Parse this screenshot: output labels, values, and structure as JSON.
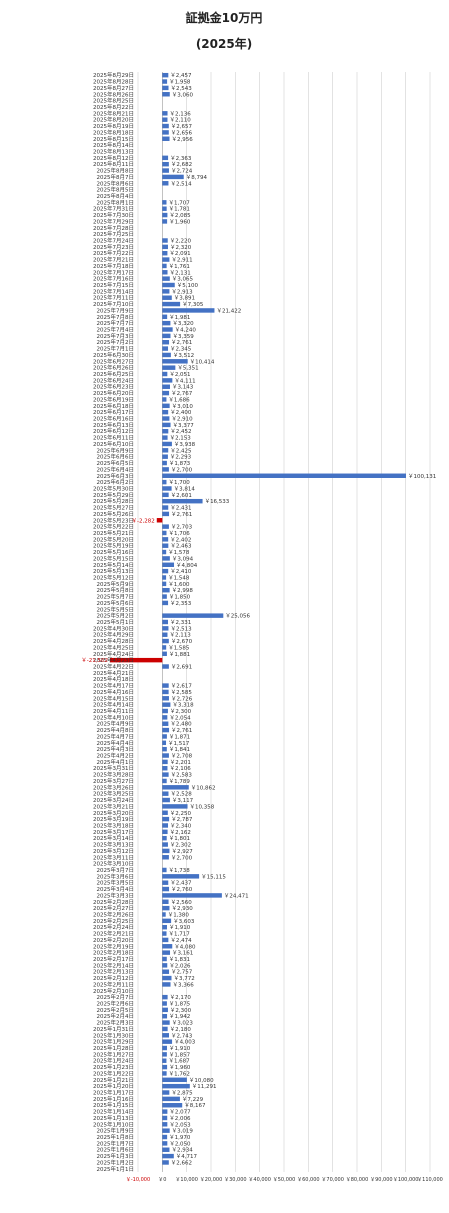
{
  "chart_data": {
    "type": "bar",
    "orientation": "horizontal",
    "title": "証拠金10万円",
    "subtitle": "(2025年)",
    "bar_color": "#4472c4",
    "negative_color": "#cc0000",
    "xlim": [
      -10000,
      110000
    ],
    "x_ticks": [
      {
        "label": "￥-10,000",
        "value": -10000
      },
      {
        "label": "￥0",
        "value": 0
      },
      {
        "label": "￥10,000",
        "value": 10000
      },
      {
        "label": "￥20,000",
        "value": 20000
      },
      {
        "label": "￥30,000",
        "value": 30000
      },
      {
        "label": "￥40,000",
        "value": 40000
      },
      {
        "label": "￥50,000",
        "value": 50000
      },
      {
        "label": "￥60,000",
        "value": 60000
      },
      {
        "label": "￥70,000",
        "value": 70000
      },
      {
        "label": "￥80,000",
        "value": 80000
      },
      {
        "label": "￥90,000",
        "value": 90000
      },
      {
        "label": "￥100,000",
        "value": 100000
      },
      {
        "label": "￥110,000",
        "value": 110000
      }
    ],
    "categories": [
      "2025年8月29日",
      "2025年8月28日",
      "2025年8月27日",
      "2025年8月26日",
      "2025年8月25日",
      "2025年8月22日",
      "2025年8月21日",
      "2025年8月20日",
      "2025年8月19日",
      "2025年8月18日",
      "2025年8月15日",
      "2025年8月14日",
      "2025年8月13日",
      "2025年8月12日",
      "2025年8月11日",
      "2025年8月8日",
      "2025年8月7日",
      "2025年8月6日",
      "2025年8月5日",
      "2025年8月4日",
      "2025年8月1日",
      "2025年7月31日",
      "2025年7月30日",
      "2025年7月29日",
      "2025年7月28日",
      "2025年7月25日",
      "2025年7月24日",
      "2025年7月23日",
      "2025年7月22日",
      "2025年7月21日",
      "2025年7月18日",
      "2025年7月17日",
      "2025年7月16日",
      "2025年7月15日",
      "2025年7月14日",
      "2025年7月11日",
      "2025年7月10日",
      "2025年7月9日",
      "2025年7月8日",
      "2025年7月7日",
      "2025年7月4日",
      "2025年7月3日",
      "2025年7月2日",
      "2025年7月1日",
      "2025年6月30日",
      "2025年6月27日",
      "2025年6月26日",
      "2025年6月25日",
      "2025年6月24日",
      "2025年6月23日",
      "2025年6月20日",
      "2025年6月19日",
      "2025年6月18日",
      "2025年6月17日",
      "2025年6月16日",
      "2025年6月13日",
      "2025年6月12日",
      "2025年6月11日",
      "2025年6月10日",
      "2025年6月9日",
      "2025年6月6日",
      "2025年6月5日",
      "2025年6月4日",
      "2025年6月3日",
      "2025年6月2日",
      "2025年5月30日",
      "2025年5月29日",
      "2025年5月28日",
      "2025年5月27日",
      "2025年5月26日",
      "2025年5月23日",
      "2025年5月22日",
      "2025年5月21日",
      "2025年5月20日",
      "2025年5月19日",
      "2025年5月16日",
      "2025年5月15日",
      "2025年5月14日",
      "2025年5月13日",
      "2025年5月12日",
      "2025年5月9日",
      "2025年5月8日",
      "2025年5月7日",
      "2025年5月6日",
      "2025年5月5日",
      "2025年5月2日",
      "2025年5月1日",
      "2025年4月30日",
      "2025年4月29日",
      "2025年4月28日",
      "2025年4月25日",
      "2025年4月24日",
      "2025年4月23日",
      "2025年4月22日",
      "2025年4月21日",
      "2025年4月18日",
      "2025年4月17日",
      "2025年4月16日",
      "2025年4月15日",
      "2025年4月14日",
      "2025年4月11日",
      "2025年4月10日",
      "2025年4月9日",
      "2025年4月8日",
      "2025年4月7日",
      "2025年4月4日",
      "2025年4月3日",
      "2025年4月2日",
      "2025年4月1日",
      "2025年3月31日",
      "2025年3月28日",
      "2025年3月27日",
      "2025年3月26日",
      "2025年3月25日",
      "2025年3月24日",
      "2025年3月21日",
      "2025年3月20日",
      "2025年3月19日",
      "2025年3月18日",
      "2025年3月17日",
      "2025年3月14日",
      "2025年3月13日",
      "2025年3月12日",
      "2025年3月11日",
      "2025年3月10日",
      "2025年3月7日",
      "2025年3月6日",
      "2025年3月5日",
      "2025年3月4日",
      "2025年3月3日",
      "2025年2月28日",
      "2025年2月27日",
      "2025年2月26日",
      "2025年2月25日",
      "2025年2月24日",
      "2025年2月21日",
      "2025年2月20日",
      "2025年2月19日",
      "2025年2月18日",
      "2025年2月17日",
      "2025年2月14日",
      "2025年2月13日",
      "2025年2月12日",
      "2025年2月11日",
      "2025年2月10日",
      "2025年2月7日",
      "2025年2月6日",
      "2025年2月5日",
      "2025年2月4日",
      "2025年2月3日",
      "2025年1月31日",
      "2025年1月30日",
      "2025年1月29日",
      "2025年1月28日",
      "2025年1月27日",
      "2025年1月24日",
      "2025年1月23日",
      "2025年1月22日",
      "2025年1月21日",
      "2025年1月20日",
      "2025年1月17日",
      "2025年1月16日",
      "2025年1月15日",
      "2025年1月14日",
      "2025年1月13日",
      "2025年1月10日",
      "2025年1月9日",
      "2025年1月8日",
      "2025年1月7日",
      "2025年1月6日",
      "2025年1月3日",
      "2025年1月2日",
      "2025年1月1日"
    ],
    "values": [
      2457,
      1958,
      2543,
      3060,
      0,
      0,
      2136,
      2110,
      2657,
      2656,
      2956,
      0,
      0,
      2363,
      2682,
      2724,
      8794,
      2514,
      0,
      0,
      1707,
      1781,
      2085,
      1960,
      0,
      0,
      2220,
      2320,
      2091,
      2911,
      1761,
      2131,
      3065,
      5100,
      2913,
      3891,
      7305,
      21422,
      1981,
      3320,
      4240,
      3359,
      2761,
      2345,
      3512,
      10414,
      5351,
      2051,
      4111,
      3143,
      2767,
      1686,
      3010,
      2400,
      2910,
      3377,
      2452,
      2153,
      3938,
      2425,
      2293,
      1873,
      2700,
      100131,
      1700,
      3814,
      2601,
      16533,
      2431,
      2761,
      -2282,
      2703,
      1706,
      2402,
      2463,
      1578,
      3094,
      4804,
      2410,
      1548,
      1600,
      2998,
      1850,
      2353,
      0,
      25056,
      2331,
      2513,
      2113,
      2670,
      1585,
      1881,
      -21502,
      2691,
      0,
      0,
      2617,
      2585,
      2726,
      3318,
      2300,
      2054,
      2480,
      2761,
      1871,
      1517,
      1841,
      2708,
      2201,
      2106,
      2583,
      1789,
      10862,
      2528,
      3117,
      10358,
      2250,
      2787,
      2340,
      2162,
      1801,
      2302,
      2927,
      2700,
      0,
      1738,
      15115,
      2437,
      2760,
      24471,
      2560,
      2930,
      1380,
      3603,
      1910,
      1717,
      2474,
      4080,
      3161,
      1831,
      2026,
      2757,
      3772,
      3366,
      0,
      2170,
      1875,
      2300,
      1942,
      3023,
      2180,
      2743,
      4003,
      1910,
      1857,
      1687,
      1960,
      1762,
      10080,
      11291,
      2875,
      7229,
      8167,
      2077,
      2006,
      2053,
      3019,
      1970,
      2050,
      2934,
      4717,
      2662,
      0
    ],
    "value_labels": [
      "￥2,457",
      "￥1,958",
      "￥2,543",
      "￥3,060",
      "",
      "",
      "￥2,136",
      "￥2,110",
      "￥2,657",
      "￥2,656",
      "￥2,956",
      "",
      "",
      "￥2,363",
      "￥2,682",
      "￥2,724",
      "￥8,794",
      "￥2,514",
      "",
      "",
      "￥1,707",
      "￥1,781",
      "￥2,085",
      "￥1,960",
      "",
      "",
      "￥2,220",
      "￥2,320",
      "￥2,091",
      "￥2,911",
      "￥1,761",
      "￥2,131",
      "￥3,065",
      "￥5,100",
      "￥2,913",
      "￥3,891",
      "￥7,305",
      "￥21,422",
      "￥1,981",
      "￥3,320",
      "￥4,240",
      "￥3,359",
      "￥2,761",
      "￥2,345",
      "￥3,512",
      "￥10,414",
      "￥5,351",
      "￥2,051",
      "￥4,111",
      "￥3,143",
      "￥2,767",
      "￥1,686",
      "￥3,010",
      "￥2,400",
      "￥2,910",
      "￥3,377",
      "￥2,452",
      "￥2,153",
      "￥3,938",
      "￥2,425",
      "￥2,293",
      "￥1,873",
      "￥2,700",
      "￥100,131",
      "￥1,700",
      "￥3,814",
      "￥2,601",
      "￥16,533",
      "￥2,431",
      "￥2,761",
      "￥-2,282",
      "￥2,703",
      "￥1,706",
      "￥2,402",
      "￥2,463",
      "￥1,578",
      "￥3,094",
      "￥4,804",
      "￥2,410",
      "￥1,548",
      "￥1,600",
      "￥2,998",
      "￥1,850",
      "￥2,353",
      "",
      "￥25,056",
      "￥2,331",
      "￥2,513",
      "￥2,113",
      "￥2,670",
      "￥1,585",
      "￥1,881",
      "￥-21,502",
      "￥2,691",
      "",
      "",
      "￥2,617",
      "￥2,585",
      "￥2,726",
      "￥3,318",
      "￥2,300",
      "￥2,054",
      "￥2,480",
      "￥2,761",
      "￥1,871",
      "￥1,517",
      "￥1,841",
      "￥2,708",
      "￥2,201",
      "￥2,106",
      "￥2,583",
      "￥1,789",
      "￥10,862",
      "￥2,528",
      "￥3,117",
      "￥10,358",
      "￥2,250",
      "￥2,787",
      "￥2,340",
      "￥2,162",
      "￥1,801",
      "￥2,302",
      "￥2,927",
      "￥2,700",
      "",
      "￥1,738",
      "￥15,115",
      "￥2,437",
      "￥2,760",
      "￥24,471",
      "￥2,560",
      "￥2,930",
      "￥1,380",
      "￥3,603",
      "￥1,910",
      "￥1,717",
      "￥2,474",
      "￥4,080",
      "￥3,161",
      "￥1,831",
      "￥2,026",
      "￥2,757",
      "￥3,772",
      "￥3,366",
      "",
      "￥2,170",
      "￥1,875",
      "￥2,300",
      "￥1,942",
      "￥3,023",
      "￥2,180",
      "￥2,743",
      "￥4,003",
      "￥1,910",
      "￥1,857",
      "￥1,687",
      "￥1,960",
      "￥1,762",
      "￥10,080",
      "￥11,291",
      "￥2,875",
      "￥7,229",
      "￥8,167",
      "￥2,077",
      "￥2,006",
      "￥2,053",
      "￥3,019",
      "￥1,970",
      "￥2,050",
      "￥2,934",
      "￥4,717",
      "￥2,662",
      ""
    ],
    "grid": true,
    "legend": "none"
  }
}
